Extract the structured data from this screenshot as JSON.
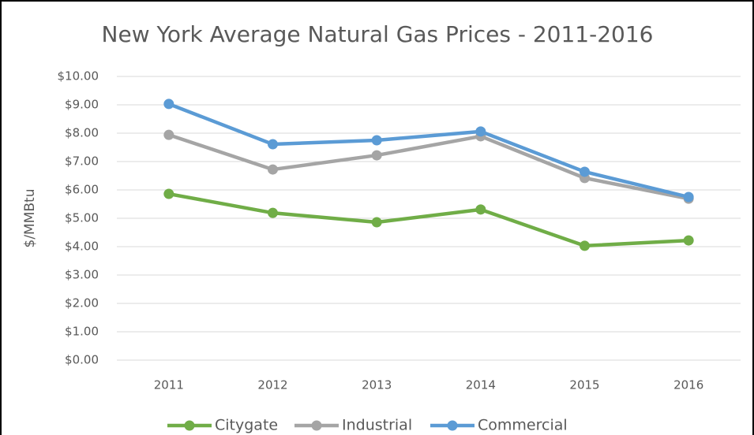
{
  "chart_data": {
    "type": "line",
    "title": "New York Average Natural Gas Prices - 2011-2016",
    "y_label": "$/MMBtu",
    "categories": [
      "2011",
      "2012",
      "2013",
      "2014",
      "2015",
      "2016"
    ],
    "series": [
      {
        "name": "Citygate",
        "color": "#70ad47",
        "values": [
          5.86,
          5.19,
          4.86,
          5.31,
          4.03,
          4.22
        ]
      },
      {
        "name": "Industrial",
        "color": "#a5a5a5",
        "values": [
          7.94,
          6.72,
          7.22,
          7.89,
          6.42,
          5.69
        ]
      },
      {
        "name": "Commercial",
        "color": "#5b9bd5",
        "values": [
          9.03,
          7.61,
          7.75,
          8.06,
          6.64,
          5.75
        ]
      }
    ],
    "ylim": [
      0,
      10
    ],
    "yticks": [
      {
        "value": 0,
        "label": "$0.00"
      },
      {
        "value": 1,
        "label": "$1.00"
      },
      {
        "value": 2,
        "label": "$2.00"
      },
      {
        "value": 3,
        "label": "$3.00"
      },
      {
        "value": 4,
        "label": "$4.00"
      },
      {
        "value": 5,
        "label": "$5.00"
      },
      {
        "value": 6,
        "label": "$6.00"
      },
      {
        "value": 7,
        "label": "$7.00"
      },
      {
        "value": 8,
        "label": "$8.00"
      },
      {
        "value": 9,
        "label": "$9.00"
      },
      {
        "value": 10,
        "label": "$10.00"
      }
    ],
    "grid": true,
    "legend": "bottom"
  }
}
